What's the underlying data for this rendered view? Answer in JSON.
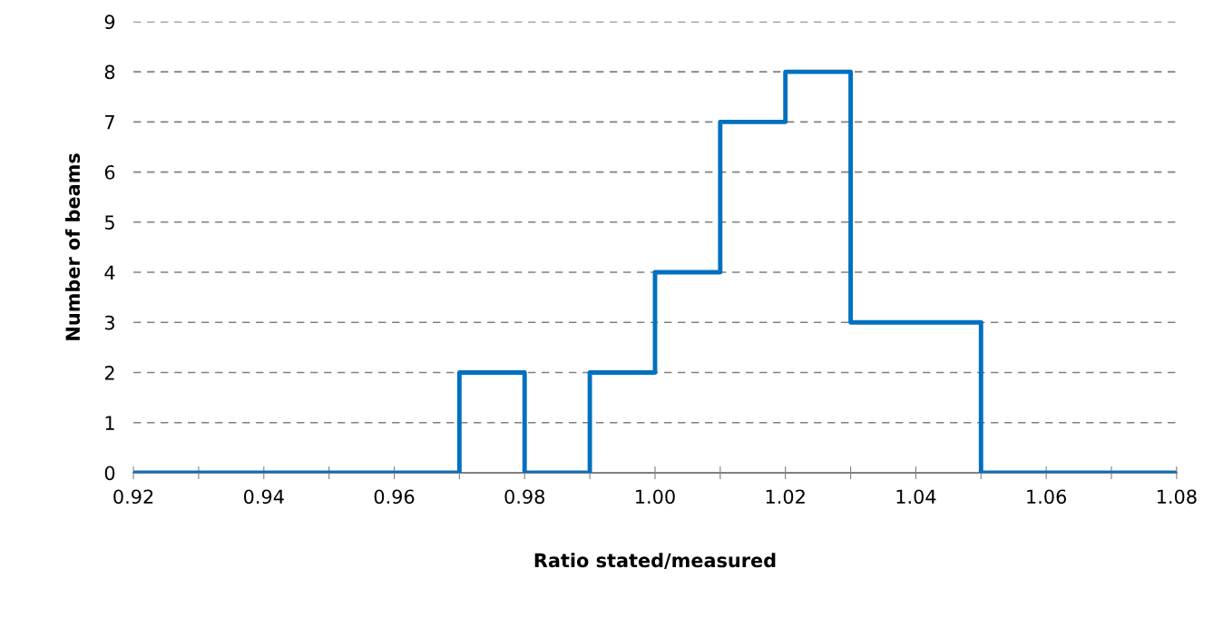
{
  "chart_data": {
    "type": "histogram",
    "xlabel": "Ratio stated/measured",
    "ylabel": "Number of beams",
    "bins": [
      0.92,
      0.93,
      0.94,
      0.95,
      0.96,
      0.97,
      0.98,
      0.99,
      1.0,
      1.01,
      1.02,
      1.03,
      1.04,
      1.05,
      1.06,
      1.07,
      1.08
    ],
    "values": [
      0,
      0,
      0,
      0,
      0,
      2,
      0,
      2,
      4,
      7,
      8,
      3,
      3,
      0,
      0,
      0
    ],
    "color": "#0070c0",
    "xlim": [
      0.92,
      1.08
    ],
    "xticks": [
      0.92,
      {
        "value": 0.93,
        "label": null
      },
      0.94,
      {
        "value": 0.95,
        "label": null
      },
      0.96,
      {
        "value": 0.97,
        "label": null
      },
      0.98,
      {
        "value": 0.99,
        "label": null
      },
      {
        "value": 1.0,
        "label": "1.00"
      },
      {
        "value": 1.01,
        "label": null
      },
      1.02,
      {
        "value": 1.03,
        "label": null
      },
      1.04,
      {
        "value": 1.05,
        "label": null
      },
      1.06,
      {
        "value": 1.07,
        "label": null
      },
      1.08
    ],
    "ylim": [
      0,
      9
    ],
    "yticks": [
      0,
      1,
      2,
      3,
      4,
      5,
      6,
      7,
      8,
      9
    ],
    "grid": "y",
    "line_style": "solid"
  }
}
